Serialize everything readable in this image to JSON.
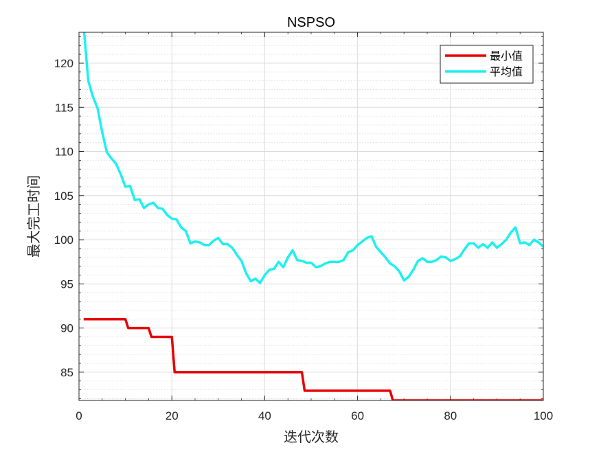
{
  "chart_data": {
    "type": "line",
    "title": "NSPSO",
    "xlabel": "迭代次数",
    "ylabel": "最大完工时间",
    "xlim": [
      0,
      100
    ],
    "ylim": [
      81.8,
      123.5
    ],
    "x_ticks": [
      0,
      20,
      40,
      60,
      80,
      100
    ],
    "y_ticks": [
      85,
      90,
      95,
      100,
      105,
      110,
      115,
      120
    ],
    "grid": true,
    "minor_grid": true,
    "legend_position": "top-right",
    "series": [
      {
        "name": "最小值",
        "color": "#e60000",
        "x": [
          1,
          9,
          10,
          14,
          15,
          19,
          20,
          47,
          48,
          66,
          67,
          100
        ],
        "y": [
          91,
          91,
          90,
          90,
          89,
          89,
          85,
          85,
          82.9,
          82.9,
          81.8,
          81.8
        ]
      },
      {
        "name": "平均值",
        "color": "#1ef0f0",
        "x": [
          1,
          2,
          3,
          4,
          5,
          6,
          7,
          8,
          9,
          10,
          11,
          12,
          13,
          14,
          15,
          16,
          17,
          18,
          19,
          20,
          21,
          22,
          23,
          24,
          25,
          26,
          27,
          28,
          29,
          30,
          31,
          32,
          33,
          34,
          35,
          36,
          37,
          38,
          39,
          40,
          41,
          42,
          43,
          44,
          45,
          46,
          47,
          48,
          49,
          50,
          51,
          52,
          53,
          54,
          55,
          56,
          57,
          58,
          59,
          60,
          61,
          62,
          63,
          64,
          65,
          66,
          67,
          68,
          69,
          70,
          71,
          72,
          73,
          74,
          75,
          76,
          77,
          78,
          79,
          80,
          81,
          82,
          83,
          84,
          85,
          86,
          87,
          88,
          89,
          90,
          91,
          92,
          93,
          94,
          95,
          96,
          97,
          98,
          99,
          100
        ],
        "y": [
          124.2,
          118.0,
          116.2,
          114.9,
          112.2,
          109.9,
          109.2,
          108.6,
          107.4,
          106.0,
          106.1,
          104.5,
          104.6,
          103.6,
          104.0,
          104.2,
          103.6,
          103.5,
          102.8,
          102.4,
          102.3,
          101.4,
          101.0,
          99.6,
          99.8,
          99.7,
          99.4,
          99.4,
          99.9,
          100.2,
          99.5,
          99.5,
          99.1,
          98.3,
          97.6,
          96.2,
          95.3,
          95.6,
          95.1,
          96.0,
          96.6,
          96.7,
          97.5,
          96.9,
          98.0,
          98.8,
          97.7,
          97.6,
          97.4,
          97.4,
          96.9,
          97.0,
          97.3,
          97.5,
          97.5,
          97.5,
          97.7,
          98.6,
          98.8,
          99.4,
          99.8,
          100.2,
          100.4,
          99.2,
          98.6,
          98.0,
          97.3,
          97.0,
          96.4,
          95.4,
          95.8,
          96.6,
          97.6,
          97.9,
          97.5,
          97.5,
          97.7,
          98.1,
          98.0,
          97.6,
          97.8,
          98.1,
          98.9,
          99.6,
          99.6,
          99.1,
          99.5,
          99.1,
          99.7,
          99.1,
          99.5,
          100.0,
          100.8,
          101.4,
          99.6,
          99.7,
          99.4,
          100.0,
          99.7,
          99.2
        ]
      }
    ]
  }
}
